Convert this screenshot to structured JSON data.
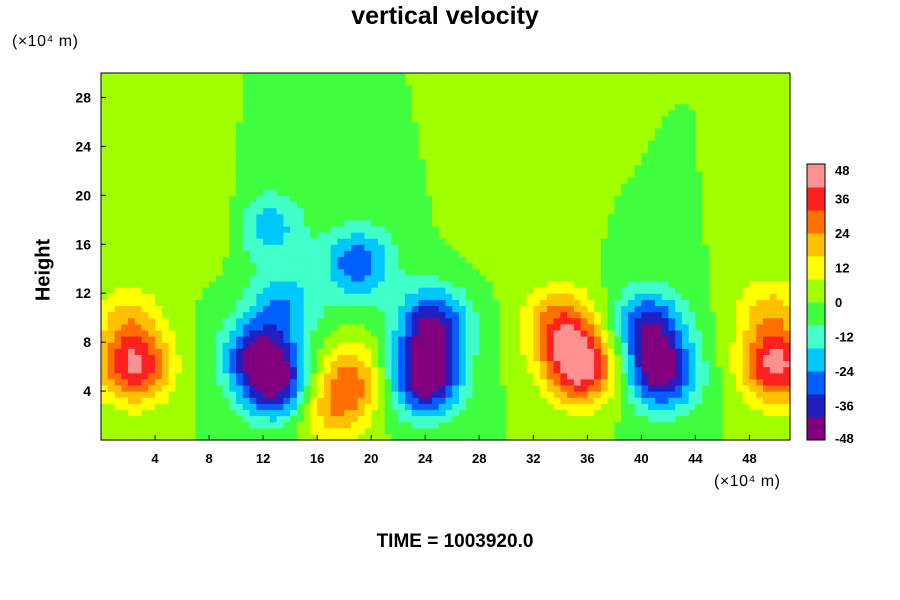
{
  "chart_data": {
    "type": "heatmap",
    "title": "vertical velocity",
    "ylabel": "Height",
    "xlabel": "",
    "x_unit": "(×10⁴ m)",
    "y_unit": "(×10⁴ m)",
    "footer": "TIME = 1003920.0",
    "xlim": [
      0,
      51
    ],
    "ylim": [
      0,
      30
    ],
    "x_ticks": [
      4,
      8,
      12,
      16,
      20,
      24,
      28,
      32,
      36,
      40,
      44,
      48
    ],
    "y_ticks": [
      4,
      8,
      12,
      16,
      20,
      24,
      28
    ],
    "colorbar": {
      "min": -48,
      "max": 48,
      "ticks": [
        48,
        36,
        24,
        12,
        0,
        -12,
        -24,
        -36,
        -48
      ],
      "colors": [
        "#800080",
        "#2020c0",
        "#0060ff",
        "#00c8ff",
        "#40ffc8",
        "#40ff40",
        "#a0ff00",
        "#ffff00",
        "#ffc000",
        "#ff7000",
        "#ff2020",
        "#ff9090"
      ]
    },
    "background_value": 0,
    "features": [
      {
        "x": 2.5,
        "y": 6.0,
        "value": 40
      },
      {
        "x": 2.0,
        "y": 10.0,
        "value": 16
      },
      {
        "x": 11.5,
        "y": 7.0,
        "value": -34
      },
      {
        "x": 13.0,
        "y": 4.5,
        "value": -38
      },
      {
        "x": 13.5,
        "y": 11.0,
        "value": -22
      },
      {
        "x": 18.5,
        "y": 5.0,
        "value": 24
      },
      {
        "x": 17.0,
        "y": 2.5,
        "value": 18
      },
      {
        "x": 19.0,
        "y": 14.5,
        "value": -30
      },
      {
        "x": 12.5,
        "y": 17.5,
        "value": -20
      },
      {
        "x": 24.0,
        "y": 5.0,
        "value": -48
      },
      {
        "x": 24.5,
        "y": 9.5,
        "value": -40
      },
      {
        "x": 35.5,
        "y": 6.0,
        "value": 46
      },
      {
        "x": 34.0,
        "y": 9.5,
        "value": 30
      },
      {
        "x": 41.5,
        "y": 5.5,
        "value": -44
      },
      {
        "x": 40.5,
        "y": 9.5,
        "value": -34
      },
      {
        "x": 50.0,
        "y": 6.0,
        "value": 42
      },
      {
        "x": 49.5,
        "y": 10.5,
        "value": 18
      },
      {
        "x": 8.0,
        "y": 18.0,
        "value": 8
      },
      {
        "x": 30.0,
        "y": 17.0,
        "value": 6
      }
    ]
  }
}
